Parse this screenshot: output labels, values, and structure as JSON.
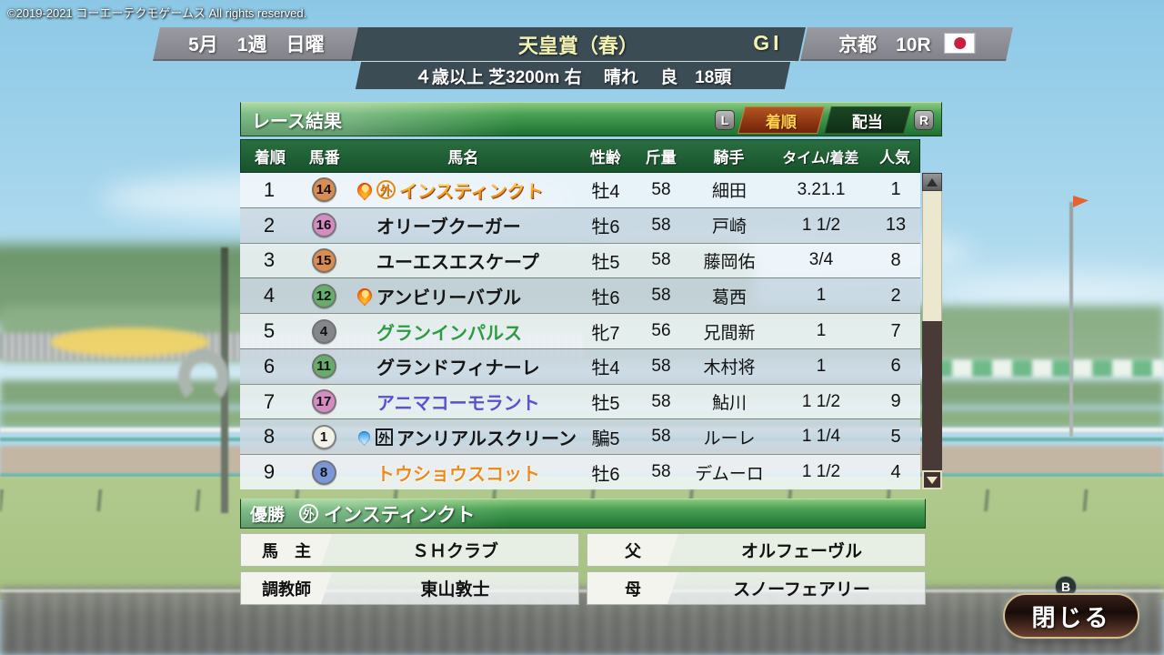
{
  "copyright": "©2019-2021 コーエーテクモゲームス All rights reserved.",
  "header": {
    "date": "5月　1週　日曜",
    "race_name": "天皇賞（春）",
    "grade": "GI",
    "venue": "京都　10R",
    "conditions": "４歳以上 芝3200m 右　 晴れ　 良　18頭"
  },
  "panel": {
    "title": "レース結果",
    "hint_left": "L",
    "hint_right": "R",
    "tabs": [
      {
        "label": "着順",
        "active": true
      },
      {
        "label": "配当",
        "active": false
      }
    ],
    "columns": [
      "着順",
      "馬番",
      "馬名",
      "性齢",
      "斤量",
      "騎手",
      "タイム/着差",
      "人気"
    ],
    "marks": {
      "circle": "外",
      "square": "外"
    },
    "rows": [
      {
        "pos": "1",
        "num": "14",
        "num_bg": "#db8c4e",
        "icon": "flame",
        "mark": "circle",
        "name": "インスティンクト",
        "name_style": "gold",
        "sex_age": "牡4",
        "weight": "58",
        "jockey": "細田",
        "time": "3.21.1",
        "fav": "1"
      },
      {
        "pos": "2",
        "num": "16",
        "num_bg": "#d58cc2",
        "icon": "none",
        "mark": "none",
        "name": "オリーブクーガー",
        "name_style": "plain",
        "sex_age": "牡6",
        "weight": "58",
        "jockey": "戸崎",
        "time": "1 1/2",
        "fav": "13"
      },
      {
        "pos": "3",
        "num": "15",
        "num_bg": "#db8c4e",
        "icon": "none",
        "mark": "none",
        "name": "ユーエスエスケープ",
        "name_style": "plain",
        "sex_age": "牡5",
        "weight": "58",
        "jockey": "藤岡佑",
        "time": "3/4",
        "fav": "8"
      },
      {
        "pos": "4",
        "num": "12",
        "num_bg": "#68ac6c",
        "icon": "flame",
        "mark": "none",
        "name": "アンビリーバブル",
        "name_style": "plain",
        "sex_age": "牡6",
        "weight": "58",
        "jockey": "葛西",
        "time": "1",
        "fav": "2"
      },
      {
        "pos": "5",
        "num": "4",
        "num_bg": "#85858c",
        "icon": "none",
        "mark": "none",
        "name": "グランインパルス",
        "name_style": "green",
        "sex_age": "牝7",
        "weight": "56",
        "jockey": "兄間新",
        "time": "1",
        "fav": "7"
      },
      {
        "pos": "6",
        "num": "11",
        "num_bg": "#68ac6c",
        "icon": "none",
        "mark": "none",
        "name": "グランドフィナーレ",
        "name_style": "plain",
        "sex_age": "牡4",
        "weight": "58",
        "jockey": "木村将",
        "time": "1",
        "fav": "6"
      },
      {
        "pos": "7",
        "num": "17",
        "num_bg": "#d58cc2",
        "icon": "none",
        "mark": "none",
        "name": "アニマコーモラント",
        "name_style": "blue",
        "sex_age": "牡5",
        "weight": "58",
        "jockey": "鮎川",
        "time": "1 1/2",
        "fav": "9"
      },
      {
        "pos": "8",
        "num": "1",
        "num_bg": "#f2f1ea",
        "icon": "drop",
        "mark": "square",
        "name": "アンリアルスクリーン",
        "name_style": "plain",
        "sex_age": "騙5",
        "weight": "58",
        "jockey": "ルーレ",
        "time": "1 1/4",
        "fav": "5"
      },
      {
        "pos": "9",
        "num": "8",
        "num_bg": "#7b97d8",
        "icon": "none",
        "mark": "none",
        "name": "トウショウスコット",
        "name_style": "orange",
        "sex_age": "牡6",
        "weight": "58",
        "jockey": "デムーロ",
        "time": "1 1/2",
        "fav": "4"
      }
    ]
  },
  "winner": {
    "label": "優勝",
    "mark": "外",
    "name": "インスティンクト",
    "fields": [
      {
        "label": "馬　主",
        "value": "ＳＨクラブ"
      },
      {
        "label": "父",
        "value": "オルフェーヴル"
      },
      {
        "label": "調教師",
        "value": "東山敦士"
      },
      {
        "label": "母",
        "value": "スノーフェアリー"
      }
    ]
  },
  "close": {
    "hint": "B",
    "label": "閉じる"
  }
}
